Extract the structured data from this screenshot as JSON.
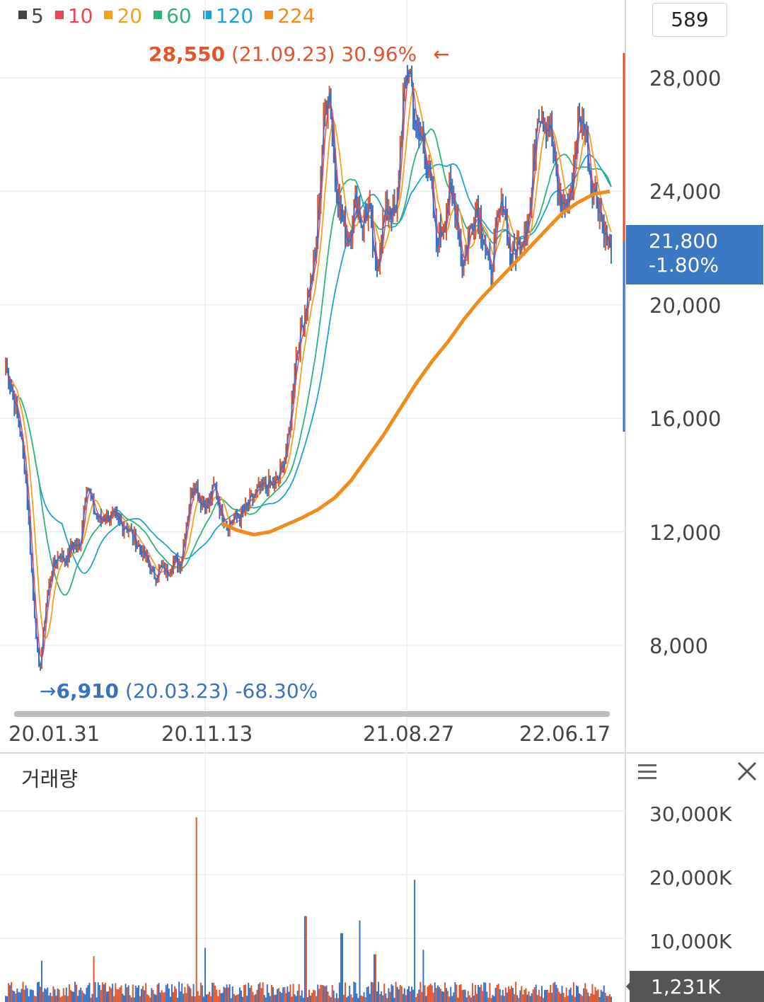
{
  "legend": [
    {
      "label": "5",
      "color": "#444444"
    },
    {
      "label": "10",
      "color": "#e8455a"
    },
    {
      "label": "20",
      "color": "#f4a11c"
    },
    {
      "label": "60",
      "color": "#2db37a"
    },
    {
      "label": "120",
      "color": "#1da1d8"
    },
    {
      "label": "224",
      "color": "#f08c1c"
    }
  ],
  "count_box": "589",
  "high_annotation": {
    "price": "28,550",
    "date": "(21.09.23)",
    "pct": "30.96%",
    "arrow": "←"
  },
  "low_annotation": {
    "arrow": "→",
    "price": "6,910",
    "date": "(20.03.23)",
    "pct": "-68.30%"
  },
  "current_price": {
    "price": "21,800",
    "change": "-1.80%"
  },
  "volume_panel": {
    "title": "거래량",
    "current": "1,231K"
  },
  "colors": {
    "up": "#e0552e",
    "down": "#3a70c0",
    "tag": "#3a78c3"
  },
  "chart_data": [
    {
      "type": "candlestick",
      "y_ticks": [
        "28,000",
        "24,000",
        "20,000",
        "16,000",
        "12,000",
        "8,000"
      ],
      "y_tick_values": [
        28000,
        24000,
        20000,
        16000,
        12000,
        8000
      ],
      "ylim": [
        5500,
        30500
      ],
      "x_ticks": [
        "20.01.31",
        "20.11.13",
        "21.08.27",
        "22.06.17"
      ],
      "series": [
        {
          "name": "5",
          "color": "#444444"
        },
        {
          "name": "10",
          "color": "#e8455a"
        },
        {
          "name": "20",
          "color": "#f4a11c"
        },
        {
          "name": "60",
          "color": "#2db37a"
        },
        {
          "name": "120",
          "color": "#1da1d8"
        },
        {
          "name": "224",
          "color": "#f08c1c"
        }
      ],
      "price_path": [
        17800,
        17000,
        15800,
        14000,
        10000,
        6910,
        9500,
        10800,
        11200,
        11000,
        11600,
        11400,
        13800,
        12800,
        12400,
        12600,
        12500,
        12300,
        12200,
        11800,
        11400,
        11000,
        10400,
        10700,
        10600,
        11000,
        10900,
        12600,
        13800,
        13100,
        12900,
        13600,
        12700,
        12200,
        12500,
        12600,
        12900,
        13300,
        13500,
        13700,
        13600,
        14200,
        15200,
        18000,
        19200,
        20500,
        21500,
        25500,
        28000,
        24500,
        23000,
        22300,
        23800,
        22800,
        23500,
        21000,
        22800,
        23500,
        23000,
        27000,
        28550,
        26000,
        25800,
        24500,
        22200,
        22800,
        24000,
        23200,
        21300,
        22700,
        23500,
        22500,
        21000,
        22800,
        23800,
        21600,
        22000,
        22600,
        23400,
        27000,
        26600,
        26200,
        24000,
        23500,
        23800,
        26300,
        26600,
        24300,
        23700,
        22600,
        21800
      ],
      "ma224": [
        12300,
        12050,
        11900,
        12000,
        12250,
        12500,
        12800,
        13200,
        13800,
        14600,
        15400,
        16300,
        17200,
        18000,
        18700,
        19500,
        20200,
        20800,
        21400,
        22000,
        22600,
        23200,
        23600,
        23900,
        24000
      ],
      "high": {
        "value": 28550,
        "date": "21.09.23"
      },
      "low": {
        "value": 6910,
        "date": "20.03.23"
      },
      "last": 21800
    },
    {
      "type": "bar",
      "title": "거래량",
      "y_ticks": [
        "30,000K",
        "20,000K",
        "10,000K"
      ],
      "y_tick_values": [
        30000,
        20000,
        10000
      ],
      "ylim": [
        0,
        35000
      ],
      "spikes": [
        {
          "at": 0.06,
          "value": 6500
        },
        {
          "at": 0.145,
          "value": 7200
        },
        {
          "at": 0.315,
          "value": 29000
        },
        {
          "at": 0.33,
          "value": 8500
        },
        {
          "at": 0.495,
          "value": 13500
        },
        {
          "at": 0.555,
          "value": 10800
        },
        {
          "at": 0.585,
          "value": 12800
        },
        {
          "at": 0.61,
          "value": 7500
        },
        {
          "at": 0.675,
          "value": 19200
        },
        {
          "at": 0.69,
          "value": 8200
        }
      ],
      "last": 1231
    }
  ]
}
